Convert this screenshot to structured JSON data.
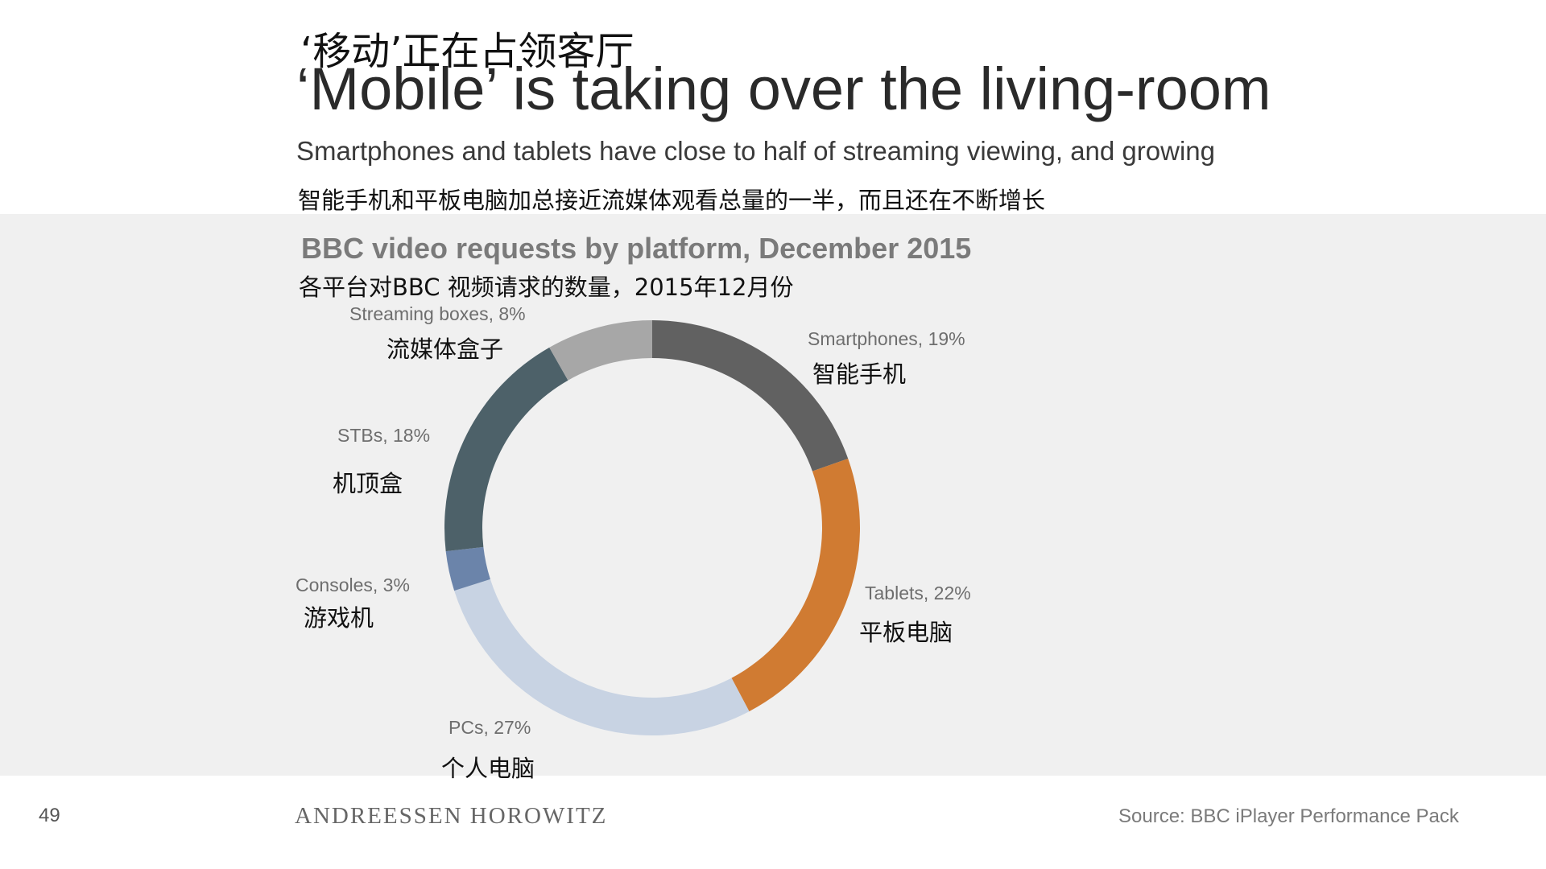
{
  "header": {
    "title_cn": "‘移动’正在占领客厅",
    "title_en": "‘Mobile’ is taking over the living-room",
    "subtitle_en": "Smartphones and tablets have close to half of streaming viewing, and growing",
    "subtitle_cn": "智能手机和平板电脑加总接近流媒体观看总量的一半，而且还在不断增长"
  },
  "chart_header": {
    "title_en": "BBC video requests by platform, December 2015",
    "title_cn": "各平台对BBC 视频请求的数量，2015年12月份"
  },
  "chart_data": {
    "type": "pie",
    "title": "BBC video requests by platform, December 2015",
    "donut": true,
    "slices": [
      {
        "label": "Smartphones, 19%",
        "label_cn": "智能手机",
        "value": 19,
        "color": "#616161"
      },
      {
        "label": "Tablets, 22%",
        "label_cn": "平板电脑",
        "value": 22,
        "color": "#d07b32"
      },
      {
        "label": "PCs, 27%",
        "label_cn": "个人电脑",
        "value": 27,
        "color": "#c8d3e3"
      },
      {
        "label": "Consoles, 3%",
        "label_cn": "游戏机",
        "value": 3,
        "color": "#6b84aa"
      },
      {
        "label": "STBs, 18%",
        "label_cn": "机顶盒",
        "value": 18,
        "color": "#4d6169"
      },
      {
        "label": "Streaming boxes, 8%",
        "label_cn": "流媒体盒子",
        "value": 8,
        "color": "#a7a7a7"
      }
    ]
  },
  "footer": {
    "page_number": "49",
    "brand": "ANDREESSEN HOROWITZ",
    "source": "Source: BBC iPlayer Performance Pack"
  }
}
